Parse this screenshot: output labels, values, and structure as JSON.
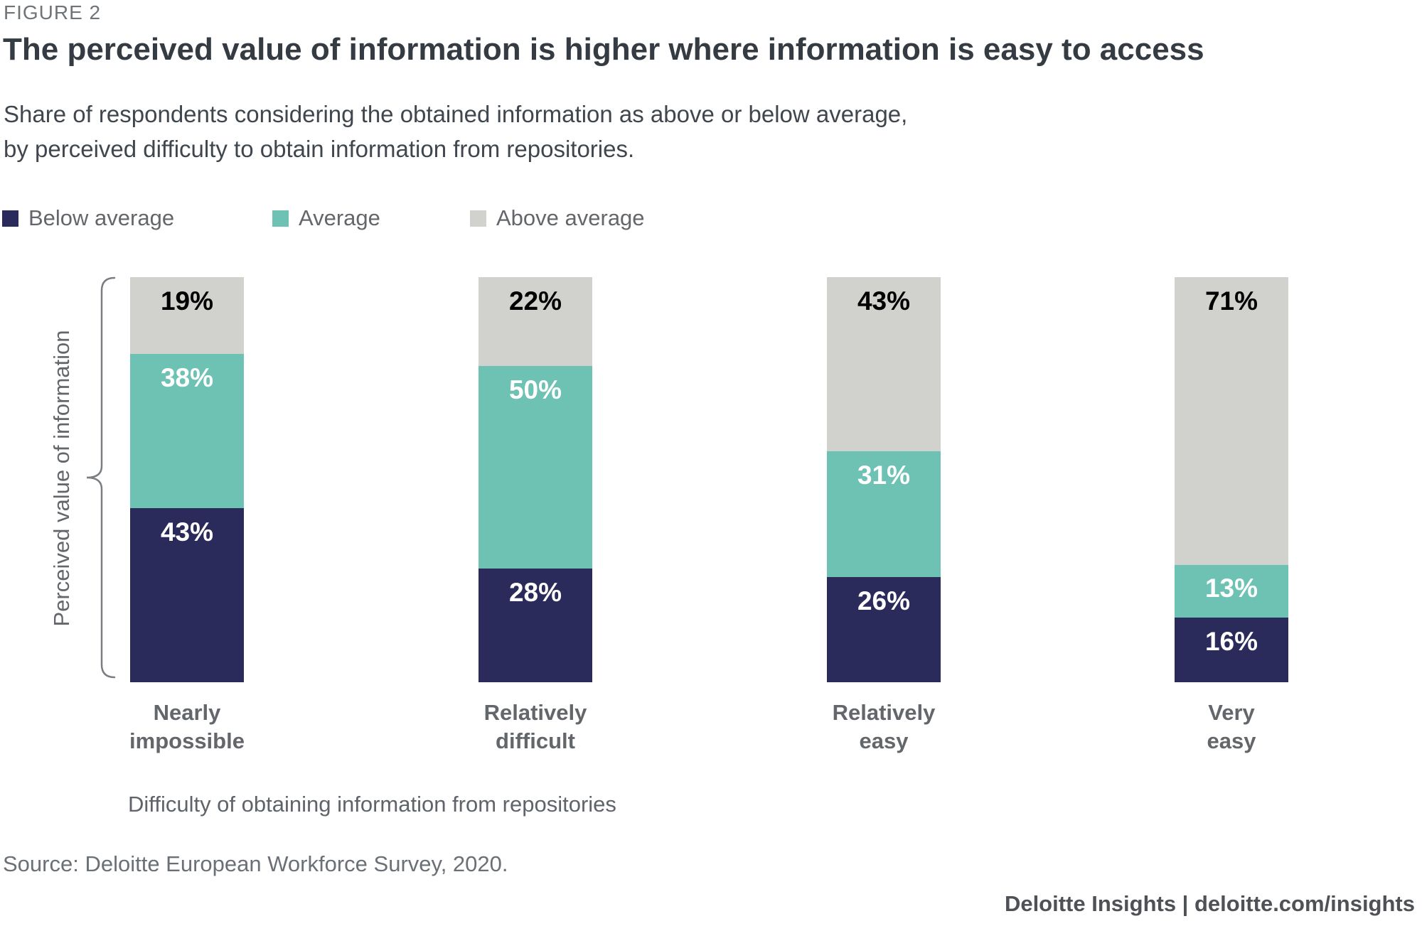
{
  "figure": {
    "kicker": "FIGURE 2",
    "title": "The perceived value of information is higher where information is easy to access",
    "subtitle_line1": "Share of respondents considering the obtained information as above or below average,",
    "subtitle_line2": "by perceived difficulty to obtain information from repositories.",
    "source": "Source: Deloitte European Workforce Survey, 2020.",
    "footer": "Deloitte Insights | deloitte.com/insights"
  },
  "legend": [
    {
      "label": "Below average",
      "color": "#2A2B5A"
    },
    {
      "label": "Average",
      "color": "#6EC2B4"
    },
    {
      "label": "Above average",
      "color": "#D1D1CE"
    }
  ],
  "axes": {
    "y_label": "Perceived value of information",
    "x_label": "Difficulty of obtaining information from repositories"
  },
  "chart_data": {
    "type": "bar",
    "stacked": true,
    "unit": "%",
    "ylim": [
      0,
      100
    ],
    "grid": false,
    "legend_position": "top-left",
    "categories": [
      "Nearly impossible",
      "Relatively difficult",
      "Relatively easy",
      "Very easy"
    ],
    "category_lines": [
      [
        "Nearly",
        "impossible"
      ],
      [
        "Relatively",
        "difficult"
      ],
      [
        "Relatively",
        "easy"
      ],
      [
        "Very",
        "easy"
      ]
    ],
    "stack_order_top_to_bottom": [
      "Above average",
      "Average",
      "Below average"
    ],
    "series": [
      {
        "name": "Below average",
        "color": "#2A2B5A",
        "text_color": "#FFFFFF",
        "values": [
          43,
          28,
          26,
          16
        ],
        "labels": [
          "43%",
          "28%",
          "26%",
          "16%"
        ]
      },
      {
        "name": "Average",
        "color": "#6EC2B4",
        "text_color": "#FFFFFF",
        "values": [
          38,
          50,
          31,
          13
        ],
        "labels": [
          "38%",
          "50%",
          "31%",
          "13%"
        ]
      },
      {
        "name": "Above average",
        "color": "#D1D1CE",
        "text_color": "#000000",
        "values": [
          19,
          22,
          43,
          71
        ],
        "labels": [
          "19%",
          "22%",
          "43%",
          "71%"
        ]
      }
    ]
  }
}
